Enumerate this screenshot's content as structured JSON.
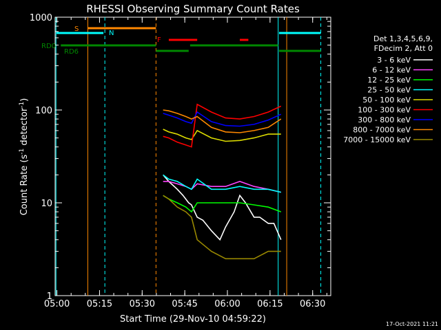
{
  "chart_data": {
    "type": "line",
    "title": "RHESSI Observing Summary Count Rates",
    "xlabel": "Start Time (29-Nov-10 04:59:22)",
    "ylabel_prefix": "Count Rate (s",
    "ylabel_sup1": "-1",
    "ylabel_mid": " detector",
    "ylabel_sup2": "-1",
    "ylabel_suffix": ")",
    "y_scale": "log",
    "x_range_min": [
      0,
      37
    ],
    "ylim": [
      1,
      1000
    ],
    "x_ticks": [
      {
        "t": 0.63,
        "label": "05:00"
      },
      {
        "t": 15.63,
        "label": "05:15"
      },
      {
        "t": 30.63,
        "label": "05:30"
      },
      {
        "t": 45.63,
        "label": "05:45"
      },
      {
        "t": 60.63,
        "label": "06:00"
      },
      {
        "t": 75.63,
        "label": "06:15"
      },
      {
        "t": 90.63,
        "label": "06:30"
      }
    ],
    "y_ticks": [
      {
        "v": 1,
        "label": "1"
      },
      {
        "v": 10,
        "label": "10"
      },
      {
        "v": 100,
        "label": "100"
      },
      {
        "v": 1000,
        "label": "1000"
      }
    ],
    "legend_header": [
      "Det 1,3,4,5,6,9,",
      "FDecim 2, Att 0"
    ],
    "legend_position": "right",
    "series": [
      {
        "name": "3 - 6 keV",
        "color": "#ffffff",
        "x": [
          38,
          40,
          43,
          45,
          47,
          48,
          50,
          52,
          55,
          58,
          60,
          63,
          65,
          67,
          70,
          72,
          75,
          77,
          79.5
        ],
        "y": [
          20,
          17,
          14,
          12,
          10,
          9.5,
          7,
          6.5,
          5,
          4,
          5.5,
          8,
          12,
          10,
          7,
          7,
          6,
          6,
          4
        ]
      },
      {
        "name": "6 - 12 keV",
        "color": "#ff44ff",
        "x": [
          38,
          40,
          43,
          46,
          48,
          50,
          55,
          60,
          65,
          70,
          75,
          79.5
        ],
        "y": [
          17,
          17,
          16,
          15,
          14,
          16,
          15,
          15,
          17,
          15,
          14,
          13
        ]
      },
      {
        "name": "12 - 25 keV",
        "color": "#00ff00",
        "x": [
          38,
          40,
          43,
          46,
          48,
          50,
          55,
          60,
          65,
          70,
          75,
          79.5
        ],
        "y": [
          12,
          11,
          10,
          9,
          8,
          10,
          10,
          10,
          10,
          9.5,
          9,
          8
        ]
      },
      {
        "name": "25 - 50 keV",
        "color": "#00ffff",
        "x": [
          38,
          40,
          43,
          46,
          48,
          50,
          55,
          60,
          65,
          70,
          75,
          79.5
        ],
        "y": [
          20,
          18,
          17,
          15,
          14,
          18,
          14,
          14,
          15,
          14,
          14,
          13
        ]
      },
      {
        "name": "50 - 100 keV",
        "color": "#dddd00",
        "x": [
          38,
          40,
          43,
          46,
          48,
          50,
          55,
          60,
          65,
          70,
          75,
          79.5
        ],
        "y": [
          62,
          58,
          55,
          50,
          48,
          60,
          50,
          46,
          47,
          50,
          55,
          55
        ]
      },
      {
        "name": "100 - 300 keV",
        "color": "#ff0000",
        "x": [
          38,
          40,
          43,
          46,
          48,
          50,
          55,
          60,
          65,
          70,
          75,
          79.5
        ],
        "y": [
          52,
          50,
          45,
          42,
          40,
          115,
          95,
          82,
          80,
          85,
          95,
          110
        ]
      },
      {
        "name": "300 - 800 keV",
        "color": "#0000ff",
        "x": [
          38,
          40,
          43,
          46,
          48,
          50,
          55,
          60,
          65,
          70,
          75,
          79.5
        ],
        "y": [
          92,
          88,
          82,
          75,
          72,
          95,
          75,
          68,
          67,
          70,
          78,
          90
        ]
      },
      {
        "name": "800 - 7000 keV",
        "color": "#ff8800",
        "x": [
          38,
          40,
          43,
          46,
          48,
          50,
          55,
          60,
          65,
          70,
          75,
          79.5
        ],
        "y": [
          100,
          98,
          92,
          85,
          80,
          85,
          65,
          58,
          57,
          60,
          65,
          80
        ]
      },
      {
        "name": "7000 - 15000 keV",
        "color": "#998800",
        "x": [
          38,
          40,
          43,
          46,
          48,
          50,
          55,
          60,
          65,
          70,
          75,
          79.5
        ],
        "y": [
          12,
          11,
          9,
          8,
          7,
          4,
          3,
          2.5,
          2.5,
          2.5,
          3,
          3
        ]
      }
    ],
    "annotations": {
      "S": {
        "label": "S",
        "color": "#ff8800"
      },
      "N": {
        "label": "N",
        "color": "#00ffff"
      },
      "F": {
        "label": "F",
        "color": "#ff0000"
      },
      "RD0": {
        "label": "RD0",
        "color": "#008800"
      },
      "RD6": {
        "label": "RD6",
        "color": "#008800"
      }
    },
    "footer": "17-Oct-2021 11:21"
  }
}
